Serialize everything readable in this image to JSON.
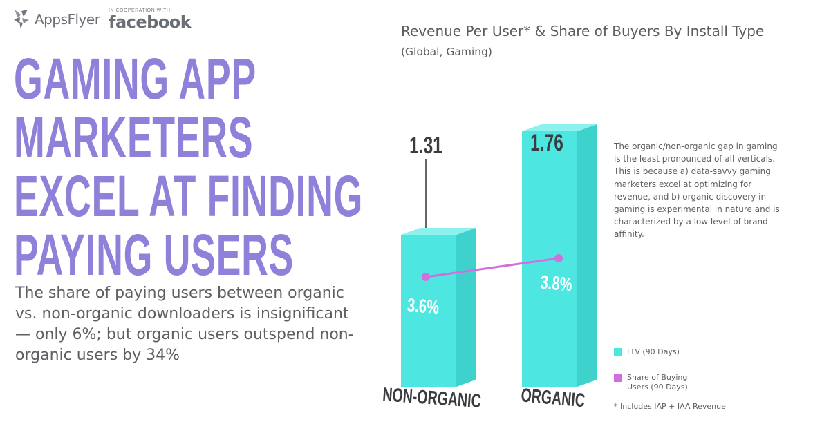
{
  "brand": {
    "logo": "AppsFlyer",
    "cooperation_label": "IN COOPERATION WITH",
    "partner": "facebook"
  },
  "headline": {
    "lines": [
      "GAMING APP",
      "MARKETERS",
      "EXCEL AT FINDING",
      "PAYING USERS"
    ]
  },
  "subtext": "The share of paying users between organic vs. non-organic downloaders is insignificant — only 6%; but organic users outspend non-organic users by 34%",
  "chart_data": {
    "type": "bar",
    "title": "Revenue Per User* & Share of Buyers By Install Type",
    "subtitle": "(Global, Gaming)",
    "categories": [
      "NON-ORGANIC",
      "ORGANIC"
    ],
    "series": [
      {
        "name": "LTV (90 Days)",
        "type": "bar",
        "values": [
          1.31,
          1.76
        ],
        "value_labels": [
          "1.31",
          "1.76"
        ],
        "color": "#4de6e1"
      },
      {
        "name": "Share of Buying Users (90 Days)",
        "type": "line",
        "values": [
          3.6,
          3.8
        ],
        "value_labels": [
          "3.6%",
          "3.8%"
        ],
        "color": "#d26fdd"
      }
    ],
    "footnote": "* Includes IAP + IAA Revenue"
  },
  "note": "The organic/non-organic gap in gaming is the least pronounced of all verticals. This is because a) data-savvy gaming marketers excel at optimizing for revenue, and b) organic discovery in gaming is experimental in nature and is characterized by a low level of brand affinity.",
  "colors": {
    "headline": "#8f80d9",
    "bar_front": "#4de6e1",
    "bar_side": "#3fd2cc",
    "bar_top": "#8df2ee",
    "line": "#d26fdd",
    "text": "#5d5f63"
  }
}
